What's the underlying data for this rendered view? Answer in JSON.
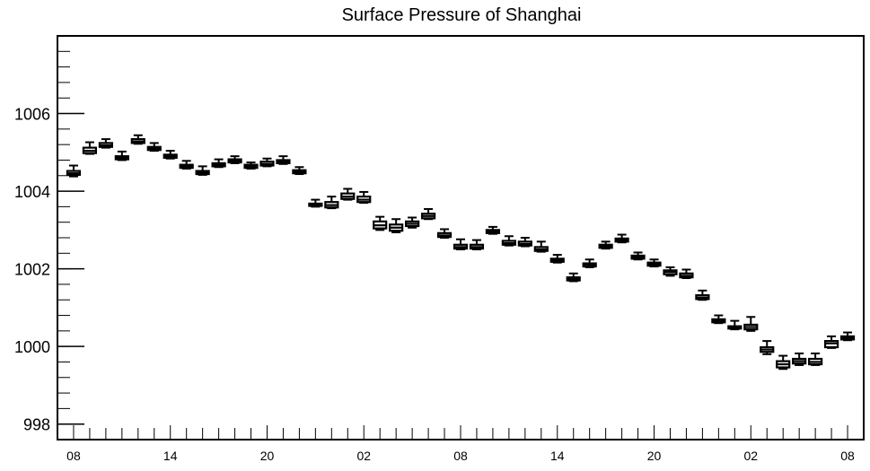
{
  "chart_data": {
    "type": "boxplot",
    "title": "Surface Pressure of Shanghai",
    "xlabel": "",
    "ylabel": "",
    "ylim": [
      997.6,
      1008.0
    ],
    "y_major_ticks": [
      998,
      1000,
      1002,
      1004,
      1006
    ],
    "y_minor_step": 0.4,
    "x_tick_labels": [
      "08",
      "14",
      "20",
      "02",
      "08",
      "14",
      "20",
      "02",
      "08"
    ],
    "x_major_every": 6,
    "x_start_hour": 8,
    "colors": {
      "line": "#000000",
      "background": "#ffffff",
      "box_fill": "#ffffff"
    },
    "series": [
      {
        "hour": 8,
        "min": 1004.38,
        "q1": 1004.42,
        "median": 1004.46,
        "q3": 1004.52,
        "max": 1004.66
      },
      {
        "hour": 9,
        "min": 1004.96,
        "q1": 1004.98,
        "median": 1005.04,
        "q3": 1005.12,
        "max": 1005.26
      },
      {
        "hour": 10,
        "min": 1005.12,
        "q1": 1005.14,
        "median": 1005.18,
        "q3": 1005.24,
        "max": 1005.34
      },
      {
        "hour": 11,
        "min": 1004.8,
        "q1": 1004.82,
        "median": 1004.86,
        "q3": 1004.9,
        "max": 1005.02
      },
      {
        "hour": 12,
        "min": 1005.22,
        "q1": 1005.24,
        "median": 1005.28,
        "q3": 1005.34,
        "max": 1005.44
      },
      {
        "hour": 13,
        "min": 1005.04,
        "q1": 1005.06,
        "median": 1005.1,
        "q3": 1005.14,
        "max": 1005.24
      },
      {
        "hour": 14,
        "min": 1004.84,
        "q1": 1004.86,
        "median": 1004.9,
        "q3": 1004.94,
        "max": 1005.04
      },
      {
        "hour": 15,
        "min": 1004.58,
        "q1": 1004.6,
        "median": 1004.64,
        "q3": 1004.68,
        "max": 1004.78
      },
      {
        "hour": 16,
        "min": 1004.42,
        "q1": 1004.44,
        "median": 1004.48,
        "q3": 1004.52,
        "max": 1004.64
      },
      {
        "hour": 17,
        "min": 1004.62,
        "q1": 1004.64,
        "median": 1004.68,
        "q3": 1004.72,
        "max": 1004.82
      },
      {
        "hour": 18,
        "min": 1004.72,
        "q1": 1004.74,
        "median": 1004.78,
        "q3": 1004.82,
        "max": 1004.9
      },
      {
        "hour": 19,
        "min": 1004.58,
        "q1": 1004.6,
        "median": 1004.64,
        "q3": 1004.68,
        "max": 1004.74
      },
      {
        "hour": 20,
        "min": 1004.64,
        "q1": 1004.66,
        "median": 1004.7,
        "q3": 1004.76,
        "max": 1004.84
      },
      {
        "hour": 21,
        "min": 1004.7,
        "q1": 1004.72,
        "median": 1004.76,
        "q3": 1004.8,
        "max": 1004.9
      },
      {
        "hour": 22,
        "min": 1004.44,
        "q1": 1004.46,
        "median": 1004.5,
        "q3": 1004.54,
        "max": 1004.62
      },
      {
        "hour": 23,
        "min": 1003.6,
        "q1": 1003.62,
        "median": 1003.64,
        "q3": 1003.68,
        "max": 1003.78
      },
      {
        "hour": 0,
        "min": 1003.56,
        "q1": 1003.58,
        "median": 1003.64,
        "q3": 1003.72,
        "max": 1003.86
      },
      {
        "hour": 1,
        "min": 1003.78,
        "q1": 1003.8,
        "median": 1003.86,
        "q3": 1003.94,
        "max": 1004.06
      },
      {
        "hour": 2,
        "min": 1003.7,
        "q1": 1003.72,
        "median": 1003.78,
        "q3": 1003.86,
        "max": 1003.98
      },
      {
        "hour": 3,
        "min": 1003.0,
        "q1": 1003.04,
        "median": 1003.12,
        "q3": 1003.22,
        "max": 1003.34
      },
      {
        "hour": 4,
        "min": 1002.94,
        "q1": 1002.98,
        "median": 1003.06,
        "q3": 1003.14,
        "max": 1003.28
      },
      {
        "hour": 5,
        "min": 1003.06,
        "q1": 1003.1,
        "median": 1003.16,
        "q3": 1003.22,
        "max": 1003.32
      },
      {
        "hour": 6,
        "min": 1003.28,
        "q1": 1003.3,
        "median": 1003.36,
        "q3": 1003.42,
        "max": 1003.54
      },
      {
        "hour": 7,
        "min": 1002.8,
        "q1": 1002.82,
        "median": 1002.86,
        "q3": 1002.92,
        "max": 1003.02
      },
      {
        "hour": 8,
        "min": 1002.5,
        "q1": 1002.52,
        "median": 1002.56,
        "q3": 1002.62,
        "max": 1002.76
      },
      {
        "hour": 9,
        "min": 1002.5,
        "q1": 1002.52,
        "median": 1002.56,
        "q3": 1002.62,
        "max": 1002.74
      },
      {
        "hour": 10,
        "min": 1002.9,
        "q1": 1002.92,
        "median": 1002.96,
        "q3": 1003.0,
        "max": 1003.08
      },
      {
        "hour": 11,
        "min": 1002.6,
        "q1": 1002.62,
        "median": 1002.66,
        "q3": 1002.72,
        "max": 1002.84
      },
      {
        "hour": 12,
        "min": 1002.58,
        "q1": 1002.6,
        "median": 1002.64,
        "q3": 1002.7,
        "max": 1002.8
      },
      {
        "hour": 13,
        "min": 1002.44,
        "q1": 1002.46,
        "median": 1002.5,
        "q3": 1002.56,
        "max": 1002.7
      },
      {
        "hour": 14,
        "min": 1002.16,
        "q1": 1002.18,
        "median": 1002.22,
        "q3": 1002.26,
        "max": 1002.36
      },
      {
        "hour": 15,
        "min": 1001.68,
        "q1": 1001.7,
        "median": 1001.74,
        "q3": 1001.78,
        "max": 1001.88
      },
      {
        "hour": 16,
        "min": 1002.04,
        "q1": 1002.06,
        "median": 1002.1,
        "q3": 1002.14,
        "max": 1002.24
      },
      {
        "hour": 17,
        "min": 1002.52,
        "q1": 1002.54,
        "median": 1002.58,
        "q3": 1002.62,
        "max": 1002.7
      },
      {
        "hour": 18,
        "min": 1002.68,
        "q1": 1002.7,
        "median": 1002.74,
        "q3": 1002.78,
        "max": 1002.88
      },
      {
        "hour": 19,
        "min": 1002.24,
        "q1": 1002.26,
        "median": 1002.3,
        "q3": 1002.34,
        "max": 1002.42
      },
      {
        "hour": 20,
        "min": 1002.06,
        "q1": 1002.08,
        "median": 1002.12,
        "q3": 1002.16,
        "max": 1002.24
      },
      {
        "hour": 21,
        "min": 1001.82,
        "q1": 1001.86,
        "median": 1001.92,
        "q3": 1001.96,
        "max": 1002.04
      },
      {
        "hour": 22,
        "min": 1001.76,
        "q1": 1001.78,
        "median": 1001.82,
        "q3": 1001.88,
        "max": 1001.98
      },
      {
        "hour": 23,
        "min": 1001.2,
        "q1": 1001.22,
        "median": 1001.26,
        "q3": 1001.32,
        "max": 1001.44
      },
      {
        "hour": 0,
        "min": 1000.6,
        "q1": 1000.62,
        "median": 1000.66,
        "q3": 1000.7,
        "max": 1000.8
      },
      {
        "hour": 1,
        "min": 1000.44,
        "q1": 1000.46,
        "median": 1000.48,
        "q3": 1000.52,
        "max": 1000.66
      },
      {
        "hour": 2,
        "min": 1000.4,
        "q1": 1000.44,
        "median": 1000.5,
        "q3": 1000.56,
        "max": 1000.76
      },
      {
        "hour": 3,
        "min": 999.8,
        "q1": 999.86,
        "median": 999.92,
        "q3": 999.98,
        "max": 1000.14
      },
      {
        "hour": 4,
        "min": 999.42,
        "q1": 999.46,
        "median": 999.54,
        "q3": 999.62,
        "max": 999.76
      },
      {
        "hour": 5,
        "min": 999.52,
        "q1": 999.56,
        "median": 999.62,
        "q3": 999.68,
        "max": 999.82
      },
      {
        "hour": 6,
        "min": 999.52,
        "q1": 999.54,
        "median": 999.6,
        "q3": 999.68,
        "max": 999.82
      },
      {
        "hour": 7,
        "min": 999.96,
        "q1": 999.98,
        "median": 1000.08,
        "q3": 1000.14,
        "max": 1000.26
      },
      {
        "hour": 8,
        "min": 1000.16,
        "q1": 1000.18,
        "median": 1000.22,
        "q3": 1000.26,
        "max": 1000.36
      }
    ]
  }
}
